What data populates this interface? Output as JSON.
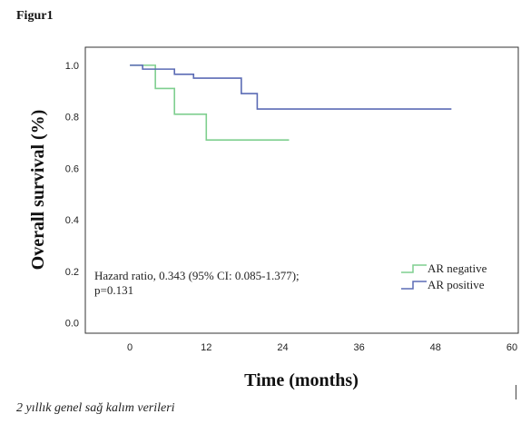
{
  "figure_label": "Figur1",
  "caption": "2 yıllık genel sağ kalım verileri",
  "chart_data": {
    "type": "line",
    "subtype": "kaplan-meier-step",
    "title": "",
    "xlabel": "Time (months)",
    "ylabel": "Overall survival (%)",
    "xlim": [
      -7,
      61
    ],
    "ylim": [
      -0.04,
      1.07
    ],
    "xticks": [
      0,
      12,
      24,
      36,
      48,
      60
    ],
    "yticks": [
      0.0,
      0.2,
      0.4,
      0.6,
      0.8,
      1.0
    ],
    "ytick_labels": [
      "0.0",
      "0.2",
      "0.4",
      "0.6",
      "0.8",
      "1.0"
    ],
    "grid": false,
    "legend_position": "bottom-right",
    "annotation": {
      "lines": [
        "Hazard ratio, 0.343 (95% CI: 0.085-1.377);",
        "p=0.131"
      ]
    },
    "series": [
      {
        "name": "AR negative",
        "color": "#7fcf8f",
        "x": [
          0,
          4,
          7,
          12,
          25
        ],
        "y": [
          1.0,
          0.91,
          0.81,
          0.71,
          0.71
        ]
      },
      {
        "name": "AR positive",
        "color": "#5b6bb5",
        "x": [
          0,
          2,
          7,
          10,
          17.5,
          20,
          50.5
        ],
        "y": [
          1.0,
          0.985,
          0.965,
          0.95,
          0.89,
          0.83,
          0.83
        ]
      }
    ]
  }
}
